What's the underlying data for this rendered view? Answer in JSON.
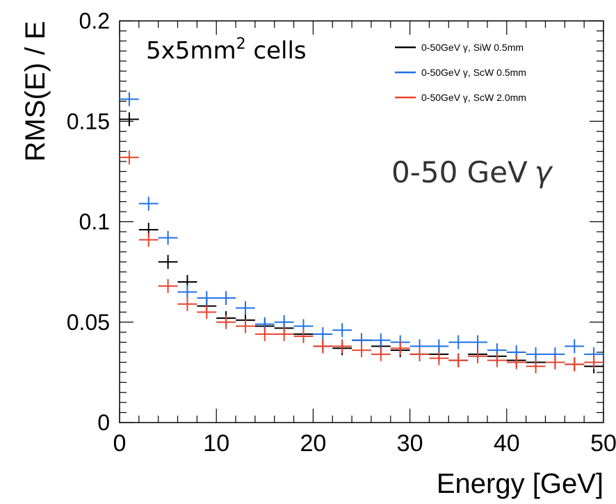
{
  "chart_data": {
    "type": "scatter",
    "xlabel": "Energy [GeV]",
    "ylabel": "RMS(E) / E",
    "xlim": [
      0,
      50
    ],
    "ylim": [
      0,
      0.2
    ],
    "x_ticks": [
      "0",
      "10",
      "20",
      "30",
      "40",
      "50"
    ],
    "y_ticks": [
      "0",
      "0.05",
      "0.1",
      "0.15",
      "0.2"
    ],
    "bin_width": 2,
    "legend_position": "top-right",
    "annotations": {
      "cells_text": "5x5mm",
      "cells_sup": "2",
      "cells_suffix": " cells",
      "energy_text": "0-50 GeV",
      "energy_symbol": "γ"
    },
    "series": [
      {
        "name": "0-50GeV γ, SiW 0.5mm",
        "color": "#000000",
        "x": [
          1,
          3,
          5,
          7,
          9,
          11,
          13,
          15,
          17,
          19,
          21,
          23,
          25,
          27,
          29,
          31,
          33,
          35,
          37,
          39,
          41,
          43,
          45,
          47,
          49
        ],
        "values": [
          0.151,
          0.096,
          0.08,
          0.07,
          0.058,
          0.052,
          0.051,
          0.048,
          0.047,
          0.044,
          0.038,
          0.037,
          0.041,
          0.038,
          0.036,
          0.034,
          0.034,
          0.031,
          0.034,
          0.033,
          0.031,
          0.03,
          0.03,
          0.029,
          0.028
        ]
      },
      {
        "name": "0-50GeV γ, ScW 0.5mm",
        "color": "#1f6fe8",
        "x": [
          1,
          3,
          5,
          7,
          9,
          11,
          13,
          15,
          17,
          19,
          21,
          23,
          25,
          27,
          29,
          31,
          33,
          35,
          37,
          39,
          41,
          43,
          45,
          47,
          49
        ],
        "values": [
          0.161,
          0.109,
          0.092,
          0.065,
          0.062,
          0.062,
          0.057,
          0.049,
          0.05,
          0.048,
          0.044,
          0.046,
          0.041,
          0.041,
          0.04,
          0.038,
          0.038,
          0.04,
          0.04,
          0.036,
          0.035,
          0.034,
          0.034,
          0.038,
          0.034
        ]
      },
      {
        "name": "0-50GeV γ, ScW 2.0mm",
        "color": "#e8442f",
        "x": [
          1,
          3,
          5,
          7,
          9,
          11,
          13,
          15,
          17,
          19,
          21,
          23,
          25,
          27,
          29,
          31,
          33,
          35,
          37,
          39,
          41,
          43,
          45,
          47,
          49
        ],
        "values": [
          0.132,
          0.091,
          0.068,
          0.059,
          0.055,
          0.05,
          0.048,
          0.044,
          0.044,
          0.043,
          0.038,
          0.038,
          0.036,
          0.034,
          0.037,
          0.034,
          0.032,
          0.031,
          0.033,
          0.031,
          0.03,
          0.028,
          0.03,
          0.029,
          0.03
        ]
      }
    ]
  }
}
